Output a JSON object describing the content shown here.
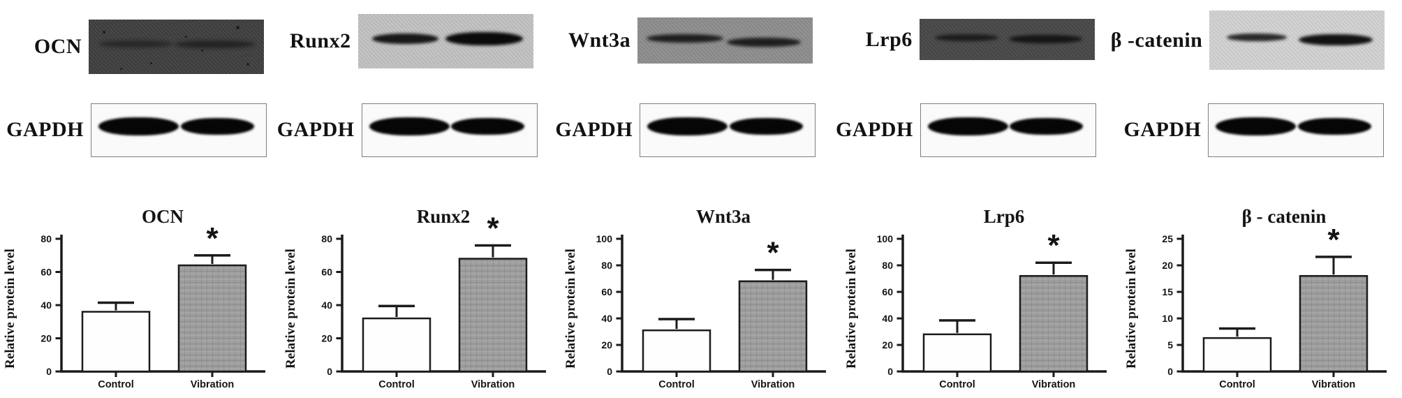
{
  "panels": [
    {
      "protein_label": "OCN",
      "gapdh_label": "GAPDH",
      "blot": {
        "bg": "#3e3e3e",
        "band_color": "#141414",
        "band_opacities": [
          0.6,
          0.68
        ],
        "speckled": true
      }
    },
    {
      "protein_label": "Runx2",
      "gapdh_label": "GAPDH",
      "blot": {
        "bg": "#c5c5c5",
        "band_color": "#0a0a0a",
        "band_opacities": [
          0.92,
          1.0
        ],
        "speckled": false
      }
    },
    {
      "protein_label": "Wnt3a",
      "gapdh_label": "GAPDH",
      "blot": {
        "bg": "#8f8f8f",
        "band_color": "#0f0f0f",
        "band_opacities": [
          0.88,
          0.88
        ],
        "speckled": false
      }
    },
    {
      "protein_label": "Lrp6",
      "gapdh_label": "GAPDH",
      "blot": {
        "bg": "#474747",
        "band_color": "#0f0f0f",
        "band_opacities": [
          0.78,
          0.88
        ],
        "speckled": false
      }
    },
    {
      "protein_label": "β -catenin",
      "gapdh_label": "GAPDH",
      "blot": {
        "bg": "#d6d6d6",
        "band_color": "#0d0d0d",
        "band_opacities": [
          0.85,
          0.97
        ],
        "speckled": false
      }
    }
  ],
  "gapdh_blot": {
    "bg": "#fafafa",
    "border": "#7e7e7e",
    "band_color": "#060606"
  },
  "colors": {
    "axis": "#1b1b1b",
    "control_fill": "#fefefe",
    "vibration_fill": "#9e9e9e",
    "hatch_line": "#858585",
    "bar_stroke": "#1b1b1b",
    "text": "#121212"
  },
  "chart_data": [
    {
      "type": "bar",
      "title": "OCN",
      "ylabel": "Relative protein level",
      "categories": [
        "Control",
        "Vibration"
      ],
      "values": [
        36,
        64
      ],
      "errors": [
        5.5,
        6
      ],
      "yticks": [
        0,
        20,
        40,
        60,
        80
      ],
      "ylim": [
        0,
        80
      ],
      "grid": false,
      "legend": false,
      "significance": {
        "category": "Vibration",
        "symbol": "*"
      }
    },
    {
      "type": "bar",
      "title": "Runx2",
      "ylabel": "Relative protein level",
      "categories": [
        "Control",
        "Vibration"
      ],
      "values": [
        32,
        68
      ],
      "errors": [
        7.5,
        8
      ],
      "yticks": [
        0,
        20,
        40,
        60,
        80
      ],
      "ylim": [
        0,
        80
      ],
      "grid": false,
      "legend": false,
      "significance": {
        "category": "Vibration",
        "symbol": "*"
      }
    },
    {
      "type": "bar",
      "title": "Wnt3a",
      "ylabel": "Relative protein level",
      "categories": [
        "Control",
        "Vibration"
      ],
      "values": [
        31,
        68
      ],
      "errors": [
        8.5,
        8.5
      ],
      "yticks": [
        0,
        20,
        40,
        60,
        80,
        100
      ],
      "ylim": [
        0,
        100
      ],
      "grid": false,
      "legend": false,
      "significance": {
        "category": "Vibration",
        "symbol": "*"
      }
    },
    {
      "type": "bar",
      "title": "Lrp6",
      "ylabel": "Relative protein level",
      "categories": [
        "Control",
        "Vibration"
      ],
      "values": [
        28,
        72
      ],
      "errors": [
        10.5,
        10
      ],
      "yticks": [
        0,
        20,
        40,
        60,
        80,
        100
      ],
      "ylim": [
        0,
        100
      ],
      "grid": false,
      "legend": false,
      "significance": {
        "category": "Vibration",
        "symbol": "*"
      }
    },
    {
      "type": "bar",
      "title": "β - catenin",
      "ylabel": "Relative protein level",
      "categories": [
        "Control",
        "Vibration"
      ],
      "values": [
        6.3,
        18
      ],
      "errors": [
        1.8,
        3.6
      ],
      "yticks": [
        0,
        5,
        10,
        15,
        20,
        25
      ],
      "ylim": [
        0,
        25
      ],
      "grid": false,
      "legend": false,
      "significance": {
        "category": "Vibration",
        "symbol": "*"
      }
    }
  ]
}
